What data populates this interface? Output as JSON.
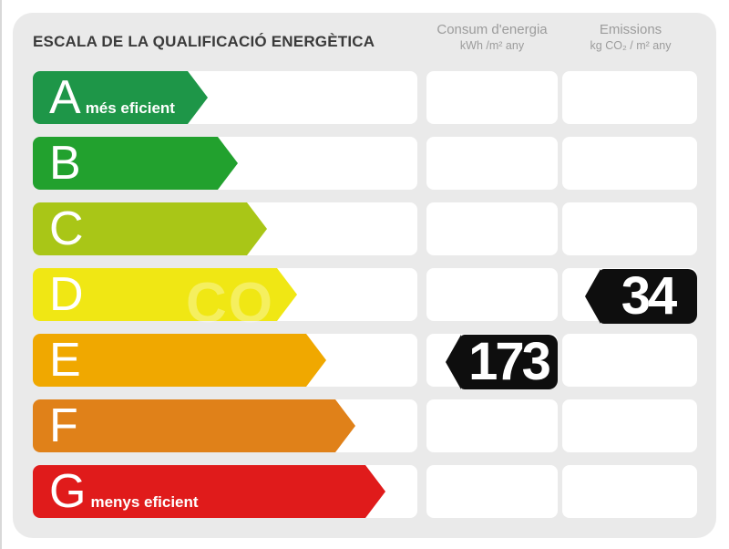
{
  "title": "ESCALA DE LA QUALIFICACIÓ ENERGÈTICA",
  "columns": {
    "consum": {
      "label": "Consum d'energia",
      "unit": "kWh /m² any"
    },
    "emissions": {
      "label": "Emissions",
      "unit": "kg CO₂ / m² any"
    }
  },
  "scale": {
    "bands": [
      {
        "letter": "A",
        "note": "més eficient",
        "color": "#1e9648"
      },
      {
        "letter": "B",
        "note": "",
        "color": "#22a12e"
      },
      {
        "letter": "C",
        "note": "",
        "color": "#a9c617"
      },
      {
        "letter": "D",
        "note": "",
        "color": "#f0e714"
      },
      {
        "letter": "E",
        "note": "",
        "color": "#f0a800"
      },
      {
        "letter": "F",
        "note": "",
        "color": "#e08119"
      },
      {
        "letter": "G",
        "note": "menys eficient",
        "color": "#e01b1b"
      }
    ]
  },
  "values": {
    "consum": {
      "value": "173",
      "band": "E"
    },
    "emissions": {
      "value": "34",
      "band": "D"
    }
  },
  "watermark": "CO",
  "colors": {
    "panel_bg": "#eaeaea",
    "cell_bg": "#ffffff",
    "value_arrow_bg": "#0e0e0e",
    "title_text": "#3a3a3a",
    "header_text": "#9c9c9c"
  },
  "chart_data": {
    "type": "bar",
    "title": "ESCALA DE LA QUALIFICACIÓ ENERGÈTICA",
    "categories": [
      "A",
      "B",
      "C",
      "D",
      "E",
      "F",
      "G"
    ],
    "band_labels": {
      "A": "més eficient",
      "G": "menys eficient"
    },
    "band_colors": [
      "#1e9648",
      "#22a12e",
      "#a9c617",
      "#f0e714",
      "#f0a800",
      "#e08119",
      "#e01b1b"
    ],
    "series": [
      {
        "name": "Consum d'energia",
        "unit": "kWh/m² any",
        "value": 173,
        "band": "E"
      },
      {
        "name": "Emissions",
        "unit": "kg CO₂/m² any",
        "value": 34,
        "band": "D"
      }
    ],
    "layout": {
      "orientation": "horizontal-arrows",
      "bar_length_increases_with_worse_rating": true,
      "legend": "none",
      "grid": "off"
    }
  }
}
